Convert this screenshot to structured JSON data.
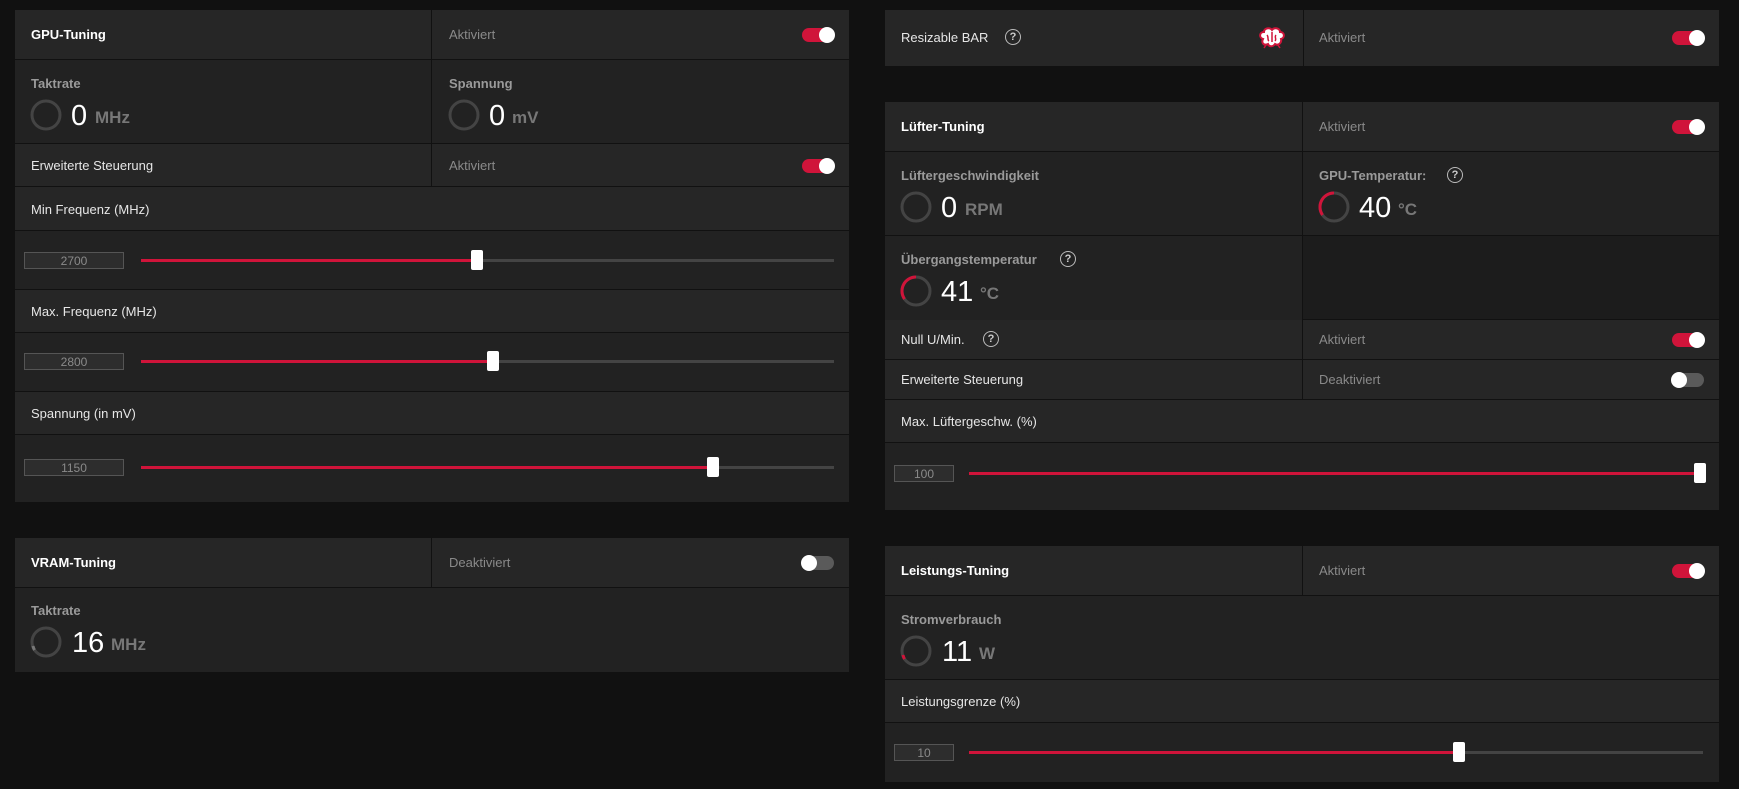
{
  "gpu_tuning": {
    "title": "GPU-Tuning",
    "status": "Aktiviert",
    "enabled": true,
    "clock": {
      "label": "Taktrate",
      "value": "0",
      "unit": "MHz"
    },
    "voltage": {
      "label": "Spannung",
      "value": "0",
      "unit": "mV"
    },
    "advanced": {
      "label": "Erweiterte Steuerung",
      "status": "Aktiviert",
      "enabled": true
    },
    "min_freq": {
      "label": "Min Frequenz (MHz)",
      "value": "2700",
      "fraction": 0.485
    },
    "max_freq": {
      "label": "Max. Frequenz (MHz)",
      "value": "2800",
      "fraction": 0.508
    },
    "voltage_slider": {
      "label": "Spannung (in mV)",
      "value": "1150",
      "fraction": 0.826
    }
  },
  "vram_tuning": {
    "title": "VRAM-Tuning",
    "status": "Deaktiviert",
    "enabled": false,
    "clock": {
      "label": "Taktrate",
      "value": "16",
      "unit": "MHz"
    }
  },
  "resizable_bar": {
    "label": "Resizable BAR",
    "status": "Aktiviert",
    "enabled": true,
    "icon": "brain-icon"
  },
  "fan_tuning": {
    "title": "Lüfter-Tuning",
    "status": "Aktiviert",
    "enabled": true,
    "fan_speed": {
      "label": "Lüftergeschwindigkeit",
      "value": "0",
      "unit": "RPM"
    },
    "gpu_temp": {
      "label": "GPU-Temperatur:",
      "value": "40",
      "unit": "°C"
    },
    "junction_temp": {
      "label": "Übergangstemperatur",
      "value": "41",
      "unit": "°C"
    },
    "zero_rpm": {
      "label": "Null U/Min.",
      "status": "Aktiviert",
      "enabled": true
    },
    "advanced": {
      "label": "Erweiterte Steuerung",
      "status": "Deaktiviert",
      "enabled": false
    },
    "max_fan": {
      "label": "Max. Lüftergeschw. (%)",
      "value": "100",
      "fraction": 1.0
    }
  },
  "power_tuning": {
    "title": "Leistungs-Tuning",
    "status": "Aktiviert",
    "enabled": true,
    "power": {
      "label": "Stromverbrauch",
      "value": "11",
      "unit": "W"
    },
    "limit": {
      "label": "Leistungsgrenze (%)",
      "value": "10",
      "fraction": 0.667
    }
  },
  "colors": {
    "accent": "#d0143a",
    "panel": "#262626",
    "background": "#111111"
  }
}
